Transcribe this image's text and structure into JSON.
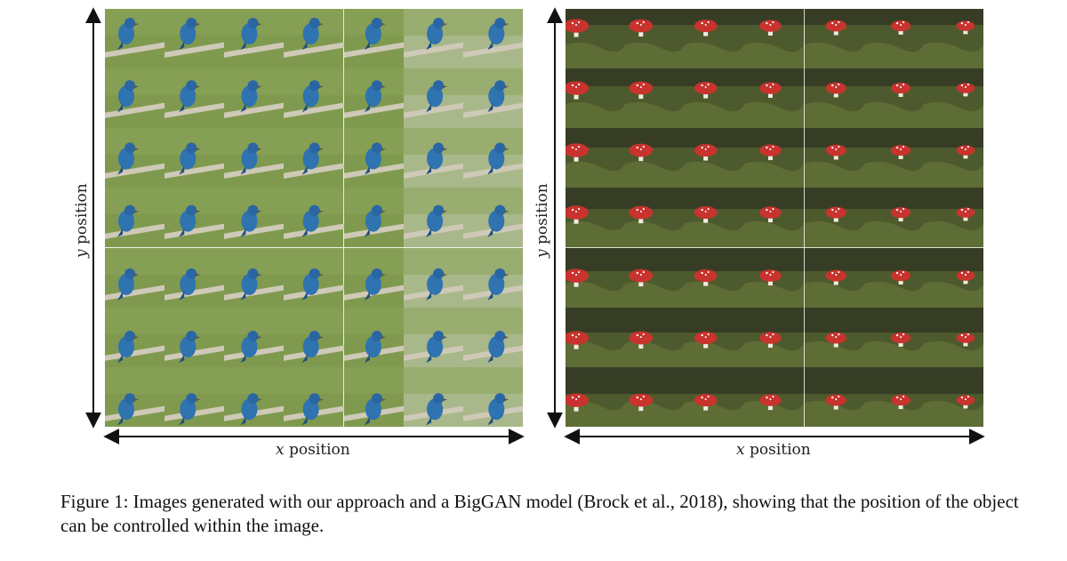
{
  "figure": {
    "left_panel": {
      "subject": "bird",
      "rows": 7,
      "cols": 7,
      "x_label_var": "x",
      "x_label_word": "position",
      "y_label_var": "y",
      "y_label_word": "position"
    },
    "right_panel": {
      "subject": "mushroom",
      "rows": 7,
      "cols": 7,
      "x_label_var": "x",
      "x_label_word": "position",
      "y_label_var": "y",
      "y_label_word": "position"
    },
    "caption": "Figure 1: Images generated with our approach and a BigGAN model (Brock et al., 2018), showing that the position of the object can be controlled within the image."
  },
  "colors": {
    "bird_bg": "#7f9a4e",
    "bird_body": "#2f73b0",
    "branch": "#cfc9b8",
    "mush_bg": "#4d5a2d",
    "mush_cap": "#c8332e",
    "mush_stem": "#f1ece0"
  }
}
